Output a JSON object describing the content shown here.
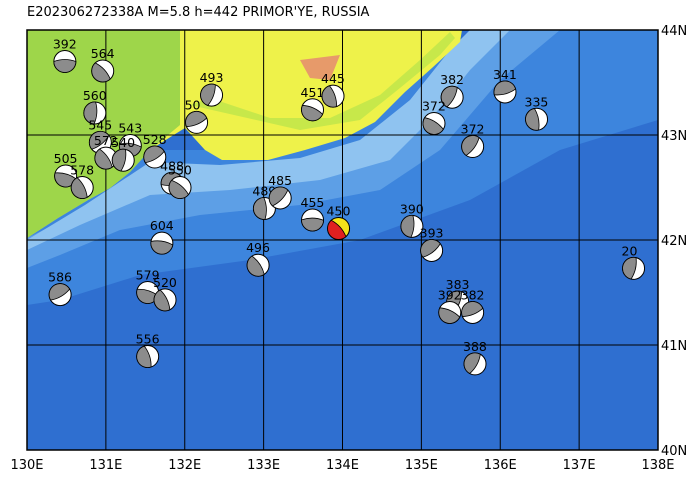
{
  "title": "E202306272338A M=5.8 h=442 PRIMOR'YE, RUSSIA",
  "map": {
    "xlim": [
      130,
      138
    ],
    "ylim": [
      40,
      44
    ],
    "xticks": [
      {
        "value": 130,
        "label": "130E"
      },
      {
        "value": 131,
        "label": "131E"
      },
      {
        "value": 132,
        "label": "132E"
      },
      {
        "value": 133,
        "label": "133E"
      },
      {
        "value": 134,
        "label": "134E"
      },
      {
        "value": 135,
        "label": "135E"
      },
      {
        "value": 136,
        "label": "136E"
      },
      {
        "value": 137,
        "label": "137E"
      },
      {
        "value": 138,
        "label": "138E"
      }
    ],
    "yticks": [
      {
        "value": 40,
        "label": "40N"
      },
      {
        "value": 41,
        "label": "41N"
      },
      {
        "value": 42,
        "label": "42N"
      },
      {
        "value": 43,
        "label": "43N"
      },
      {
        "value": 44,
        "label": "44N"
      }
    ],
    "ball_color": "#8c8c8c"
  },
  "events": [
    {
      "lon": 130.48,
      "lat": 43.7,
      "depth": 392
    },
    {
      "lon": 130.96,
      "lat": 43.61,
      "depth": 564
    },
    {
      "lon": 130.86,
      "lat": 43.21,
      "depth": 560
    },
    {
      "lon": 130.93,
      "lat": 42.93,
      "depth": 545
    },
    {
      "lon": 131.31,
      "lat": 42.9,
      "depth": 543
    },
    {
      "lon": 131.0,
      "lat": 42.78,
      "depth": 572
    },
    {
      "lon": 131.22,
      "lat": 42.76,
      "depth": 540
    },
    {
      "lon": 131.62,
      "lat": 42.79,
      "depth": 528
    },
    {
      "lon": 130.49,
      "lat": 42.61,
      "depth": 505
    },
    {
      "lon": 130.7,
      "lat": 42.5,
      "depth": 578
    },
    {
      "lon": 132.34,
      "lat": 43.38,
      "depth": 493
    },
    {
      "lon": 132.15,
      "lat": 43.12,
      "depth": 50
    },
    {
      "lon": 133.62,
      "lat": 43.24,
      "depth": 451
    },
    {
      "lon": 133.88,
      "lat": 43.37,
      "depth": 445
    },
    {
      "lon": 135.39,
      "lat": 43.36,
      "depth": 382
    },
    {
      "lon": 136.06,
      "lat": 43.41,
      "depth": 341
    },
    {
      "lon": 135.16,
      "lat": 43.11,
      "depth": 372
    },
    {
      "lon": 136.46,
      "lat": 43.15,
      "depth": 335
    },
    {
      "lon": 135.65,
      "lat": 42.89,
      "depth": 372
    },
    {
      "lon": 131.84,
      "lat": 42.54,
      "depth": 488
    },
    {
      "lon": 131.94,
      "lat": 42.5,
      "depth": 550
    },
    {
      "lon": 133.01,
      "lat": 42.3,
      "depth": 489
    },
    {
      "lon": 133.21,
      "lat": 42.4,
      "depth": 485
    },
    {
      "lon": 133.62,
      "lat": 42.19,
      "depth": 455
    },
    {
      "lon": 133.95,
      "lat": 42.11,
      "depth": 450,
      "color": "#e02020"
    },
    {
      "lon": 134.88,
      "lat": 42.13,
      "depth": 390
    },
    {
      "lon": 135.13,
      "lat": 41.9,
      "depth": 393
    },
    {
      "lon": 131.71,
      "lat": 41.97,
      "depth": 604
    },
    {
      "lon": 132.93,
      "lat": 41.76,
      "depth": 496
    },
    {
      "lon": 137.69,
      "lat": 41.73,
      "depth": 20
    },
    {
      "lon": 130.42,
      "lat": 41.48,
      "depth": 586
    },
    {
      "lon": 131.53,
      "lat": 41.5,
      "depth": 579
    },
    {
      "lon": 131.75,
      "lat": 41.43,
      "depth": 520
    },
    {
      "lon": 135.46,
      "lat": 41.41,
      "depth": 383
    },
    {
      "lon": 135.65,
      "lat": 41.31,
      "depth": 382
    },
    {
      "lon": 135.36,
      "lat": 41.31,
      "depth": 392
    },
    {
      "lon": 131.53,
      "lat": 40.89,
      "depth": 556
    },
    {
      "lon": 135.68,
      "lat": 40.82,
      "depth": 388
    }
  ]
}
